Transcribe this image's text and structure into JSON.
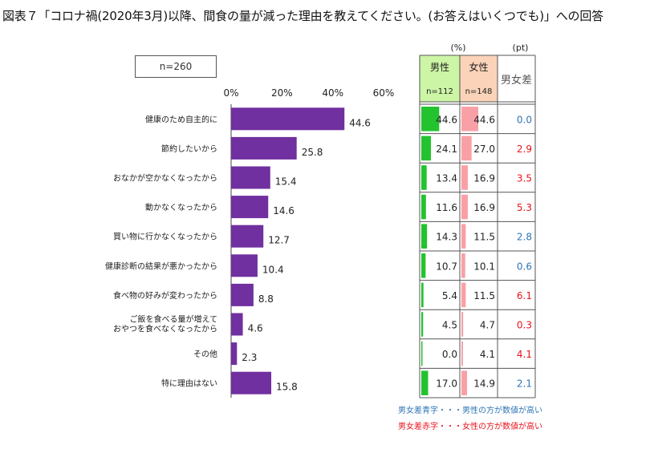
{
  "title": "図表７「コロナ禍(2020年3月)以降、間食の量が減った理由を教えてください。(お答えはいくつでも)」への回答",
  "n_label": "n=260",
  "colors": {
    "bar": "#7030A0",
    "male": "#22C32E",
    "female": "#F9A0A6",
    "blue": "#2E75B6",
    "red": "#E8141C"
  },
  "chart_data": {
    "type": "bar",
    "orientation": "horizontal",
    "title": "図表７「コロナ禍(2020年3月)以降、間食の量が減った理由を教えてください。(お答えはいくつでも)」への回答",
    "xlim": [
      0,
      60
    ],
    "ticks": [
      "0%",
      "20%",
      "40%",
      "60%"
    ],
    "tick_values": [
      0,
      20,
      40,
      60
    ],
    "categories": [
      [
        "健康のため自主的に"
      ],
      [
        "節約したいから"
      ],
      [
        "おなかが空かなくなったから"
      ],
      [
        "動かなくなったから"
      ],
      [
        "買い物に行かなくなったから"
      ],
      [
        "健康診断の結果が悪かったから"
      ],
      [
        "食べ物の好みが変わったから"
      ],
      [
        "ご飯を食べる量が増えて",
        "おやつを食べなくなったから"
      ],
      [
        "その他"
      ],
      [
        "特に理由はない"
      ]
    ],
    "values": [
      44.6,
      25.8,
      15.4,
      14.6,
      12.7,
      10.4,
      8.8,
      4.6,
      2.3,
      15.8
    ]
  },
  "table": {
    "unit_pct": "(%)",
    "unit_pt": "(pt)",
    "male_header": "男性",
    "male_n": "n=112",
    "female_header": "女性",
    "female_n": "n=148",
    "diff_header": "男女差",
    "scale_max": 100,
    "male": [
      "44.6",
      "24.1",
      "13.4",
      "11.6",
      "14.3",
      "10.7",
      "5.4",
      "4.5",
      "0.0",
      "17.0"
    ],
    "female": [
      "44.6",
      "27.0",
      "16.9",
      "16.9",
      "11.5",
      "10.1",
      "11.5",
      "4.7",
      "4.1",
      "14.9"
    ],
    "diff": [
      "0.0",
      "2.9",
      "3.5",
      "5.3",
      "2.8",
      "0.6",
      "6.1",
      "0.3",
      "4.1",
      "2.1"
    ],
    "diff_color": [
      "blue",
      "red",
      "red",
      "red",
      "blue",
      "blue",
      "red",
      "red",
      "red",
      "blue"
    ]
  },
  "notes": {
    "blue": "男女差青字・・・男性の方が数値が高い",
    "red": "男女差赤字・・・女性の方が数値が高い"
  }
}
